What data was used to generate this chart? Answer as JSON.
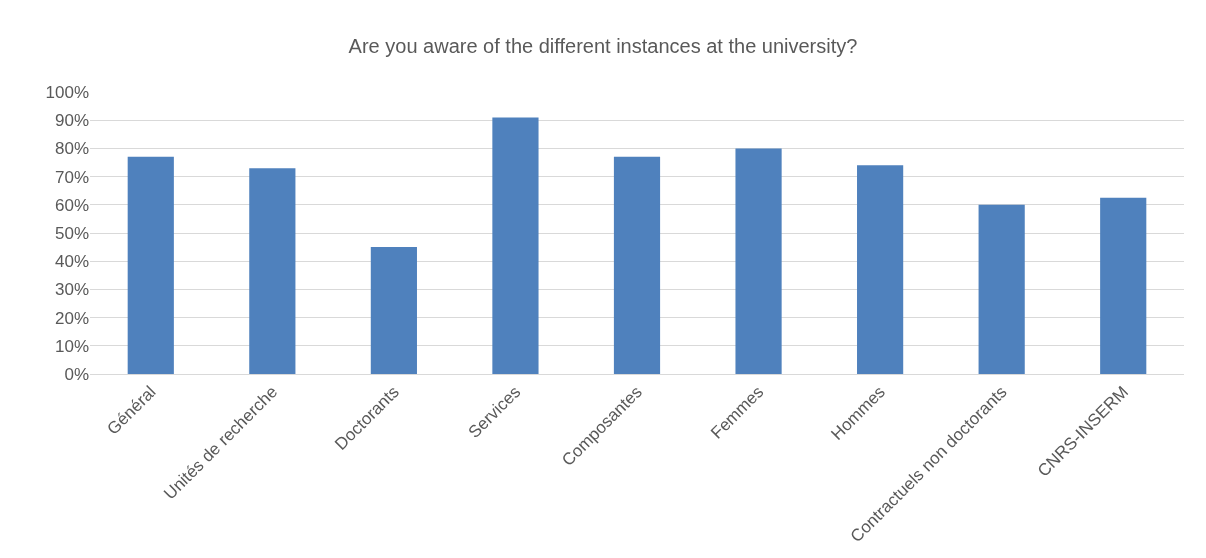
{
  "chart_data": {
    "type": "bar",
    "title": "Are you aware of the different instances at the university?",
    "categories": [
      "Général",
      "Unités de recherche",
      "Doctorants",
      "Services",
      "Composantes",
      "Femmes",
      "Hommes",
      "Contractuels non doctorants",
      "CNRS-INSERM"
    ],
    "values": [
      77,
      73,
      45,
      91,
      77,
      80,
      74,
      60,
      62.5
    ],
    "color": "#4f81bd",
    "ylim": [
      0,
      100
    ],
    "yticks": [
      {
        "value": 0,
        "label": "0%"
      },
      {
        "value": 10,
        "label": "10%"
      },
      {
        "value": 20,
        "label": "20%"
      },
      {
        "value": 30,
        "label": "30%"
      },
      {
        "value": 40,
        "label": "40%"
      },
      {
        "value": 50,
        "label": "50%"
      },
      {
        "value": 60,
        "label": "60%"
      },
      {
        "value": 70,
        "label": "70%"
      },
      {
        "value": 80,
        "label": "80%"
      },
      {
        "value": 90,
        "label": "90%"
      },
      {
        "value": 100,
        "label": "100%"
      }
    ],
    "grid": "y",
    "legend": false
  }
}
